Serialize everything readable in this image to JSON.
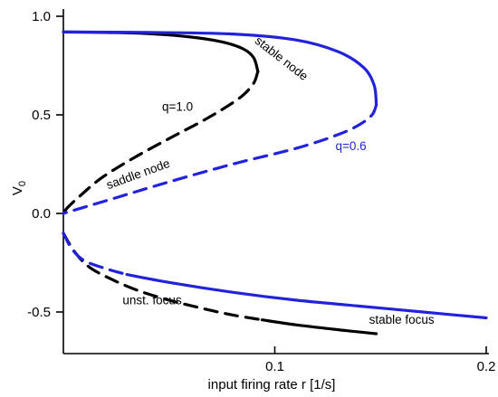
{
  "chart_data": {
    "type": "line",
    "xlabel": "input firing rate r [1/s]",
    "ylabel": "V",
    "ylabel_subscript": "0",
    "xlim": [
      0,
      0.2
    ],
    "ylim": [
      -0.7,
      1.0
    ],
    "x_ticks": [
      {
        "value": 0.1,
        "label": "0.1"
      },
      {
        "value": 0.2,
        "label": "0.2"
      }
    ],
    "y_ticks": [
      {
        "value": 1.0,
        "label": "1.0"
      },
      {
        "value": 0.5,
        "label": "0.5"
      },
      {
        "value": 0.0,
        "label": "0.0"
      },
      {
        "value": -0.5,
        "label": "-0.5"
      }
    ],
    "grid": false,
    "colors": {
      "q1": "#000000",
      "q06": "#2222dd"
    },
    "series": [
      {
        "name": "q=1.0",
        "color": "#000000",
        "segments": [
          {
            "style": "solid",
            "points": [
              [
                0,
                0.92
              ],
              [
                0.02,
                0.918
              ],
              [
                0.04,
                0.912
              ],
              [
                0.06,
                0.895
              ],
              [
                0.075,
                0.87
              ],
              [
                0.085,
                0.835
              ],
              [
                0.09,
                0.79
              ],
              [
                0.092,
                0.72
              ]
            ]
          },
          {
            "style": "dashed",
            "points": [
              [
                0.092,
                0.72
              ],
              [
                0.09,
                0.66
              ],
              [
                0.085,
                0.6
              ],
              [
                0.077,
                0.54
              ],
              [
                0.066,
                0.47
              ],
              [
                0.05,
                0.38
              ],
              [
                0.033,
                0.28
              ],
              [
                0.018,
                0.18
              ],
              [
                0.008,
                0.09
              ],
              [
                0.002,
                0.03
              ],
              [
                0,
                0
              ]
            ]
          },
          {
            "style": "dashed",
            "points": [
              [
                0,
                -0.1
              ],
              [
                0.005,
                -0.19
              ],
              [
                0.012,
                -0.27
              ],
              [
                0.022,
                -0.33
              ],
              [
                0.035,
                -0.39
              ],
              [
                0.05,
                -0.44
              ],
              [
                0.065,
                -0.48
              ],
              [
                0.08,
                -0.515
              ],
              [
                0.094,
                -0.54
              ]
            ]
          },
          {
            "style": "solid",
            "points": [
              [
                0.094,
                -0.54
              ],
              [
                0.11,
                -0.565
              ],
              [
                0.13,
                -0.59
              ],
              [
                0.148,
                -0.61
              ]
            ]
          }
        ]
      },
      {
        "name": "q=0.6",
        "color": "#2222dd",
        "segments": [
          {
            "style": "solid",
            "points": [
              [
                0,
                0.92
              ],
              [
                0.04,
                0.918
              ],
              [
                0.08,
                0.91
              ],
              [
                0.11,
                0.88
              ],
              [
                0.13,
                0.82
              ],
              [
                0.142,
                0.74
              ],
              [
                0.147,
                0.65
              ],
              [
                0.148,
                0.55
              ]
            ]
          },
          {
            "style": "dashed",
            "points": [
              [
                0.148,
                0.55
              ],
              [
                0.146,
                0.5
              ],
              [
                0.14,
                0.45
              ],
              [
                0.13,
                0.4
              ],
              [
                0.11,
                0.33
              ],
              [
                0.08,
                0.25
              ],
              [
                0.05,
                0.16
              ],
              [
                0.025,
                0.08
              ],
              [
                0,
                0
              ]
            ]
          },
          {
            "style": "dashed",
            "points": [
              [
                0,
                -0.1
              ],
              [
                0.004,
                -0.18
              ],
              [
                0.01,
                -0.24
              ],
              [
                0.02,
                -0.28
              ],
              [
                0.03,
                -0.31
              ]
            ]
          },
          {
            "style": "solid",
            "points": [
              [
                0.03,
                -0.31
              ],
              [
                0.05,
                -0.35
              ],
              [
                0.08,
                -0.4
              ],
              [
                0.11,
                -0.44
              ],
              [
                0.14,
                -0.47
              ],
              [
                0.17,
                -0.5
              ],
              [
                0.2,
                -0.53
              ]
            ]
          }
        ]
      }
    ],
    "annotations": [
      {
        "text": "stable node",
        "x": 0.102,
        "y": 0.77,
        "rotate": 38,
        "color": "#000000"
      },
      {
        "text": "q=1.0",
        "x": 0.054,
        "y": 0.52,
        "rotate": 0,
        "color": "#000000"
      },
      {
        "text": "q=0.6",
        "x": 0.136,
        "y": 0.32,
        "rotate": 0,
        "color": "#2222dd"
      },
      {
        "text": "saddle node",
        "x": 0.036,
        "y": 0.18,
        "rotate": -20,
        "color": "#000000"
      },
      {
        "text": "unst. focus",
        "x": 0.042,
        "y": -0.46,
        "rotate": 0,
        "color": "#000000"
      },
      {
        "text": "stable focus",
        "x": 0.16,
        "y": -0.56,
        "rotate": 0,
        "color": "#000000"
      }
    ]
  }
}
